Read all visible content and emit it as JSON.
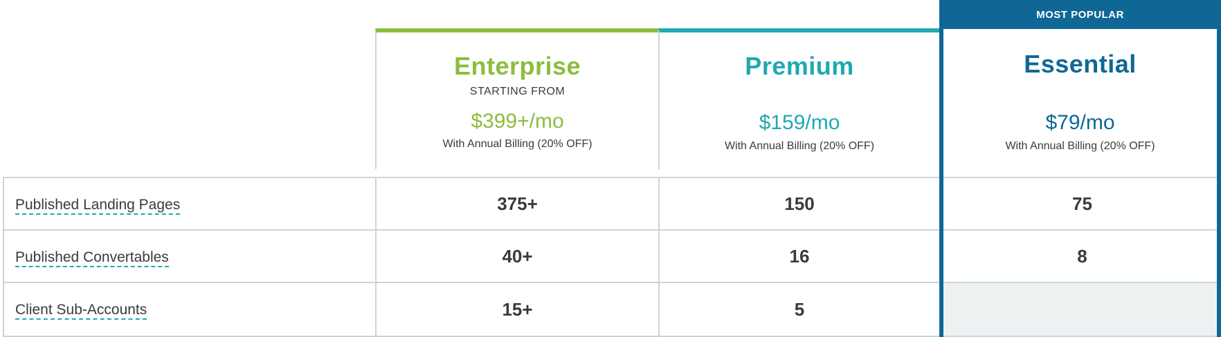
{
  "badge": {
    "label": "MOST POPULAR"
  },
  "plans": [
    {
      "name": "Enterprise",
      "starting": "STARTING FROM",
      "price": "$399+/mo",
      "billing": "With Annual Billing (20% OFF)",
      "color": "#8cbd3c"
    },
    {
      "name": "Premium",
      "price": "$159/mo",
      "billing": "With Annual Billing (20% OFF)",
      "color": "#1fa9b2"
    },
    {
      "name": "Essential",
      "price": "$79/mo",
      "billing": "With Annual Billing (20% OFF)",
      "color": "#0f6796"
    }
  ],
  "rows": [
    {
      "label": "Published Landing Pages",
      "values": [
        "375+",
        "150",
        "75"
      ]
    },
    {
      "label": "Published Convertables",
      "values": [
        "40+",
        "16",
        "8"
      ]
    },
    {
      "label": "Client Sub-Accounts",
      "values": [
        "15+",
        "5",
        ""
      ]
    }
  ]
}
